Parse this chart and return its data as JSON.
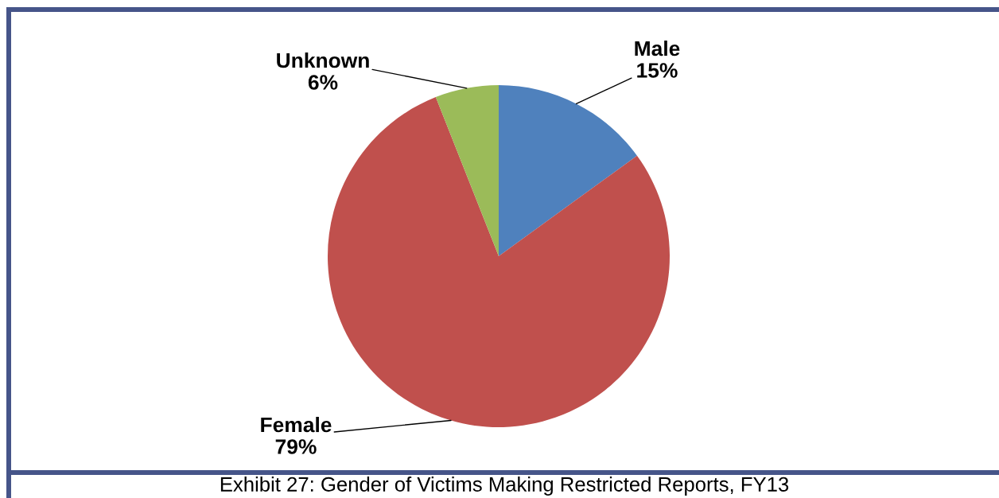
{
  "chart_data": {
    "type": "pie",
    "title": "Exhibit 27: Gender of Victims Making Restricted Reports, FY13",
    "categories": [
      "Male",
      "Female",
      "Unknown"
    ],
    "values": [
      15,
      79,
      6
    ],
    "colors": [
      "#4f81bd",
      "#c0504d",
      "#9bbb59"
    ],
    "value_labels": [
      "15%",
      "79%",
      "6%"
    ]
  }
}
